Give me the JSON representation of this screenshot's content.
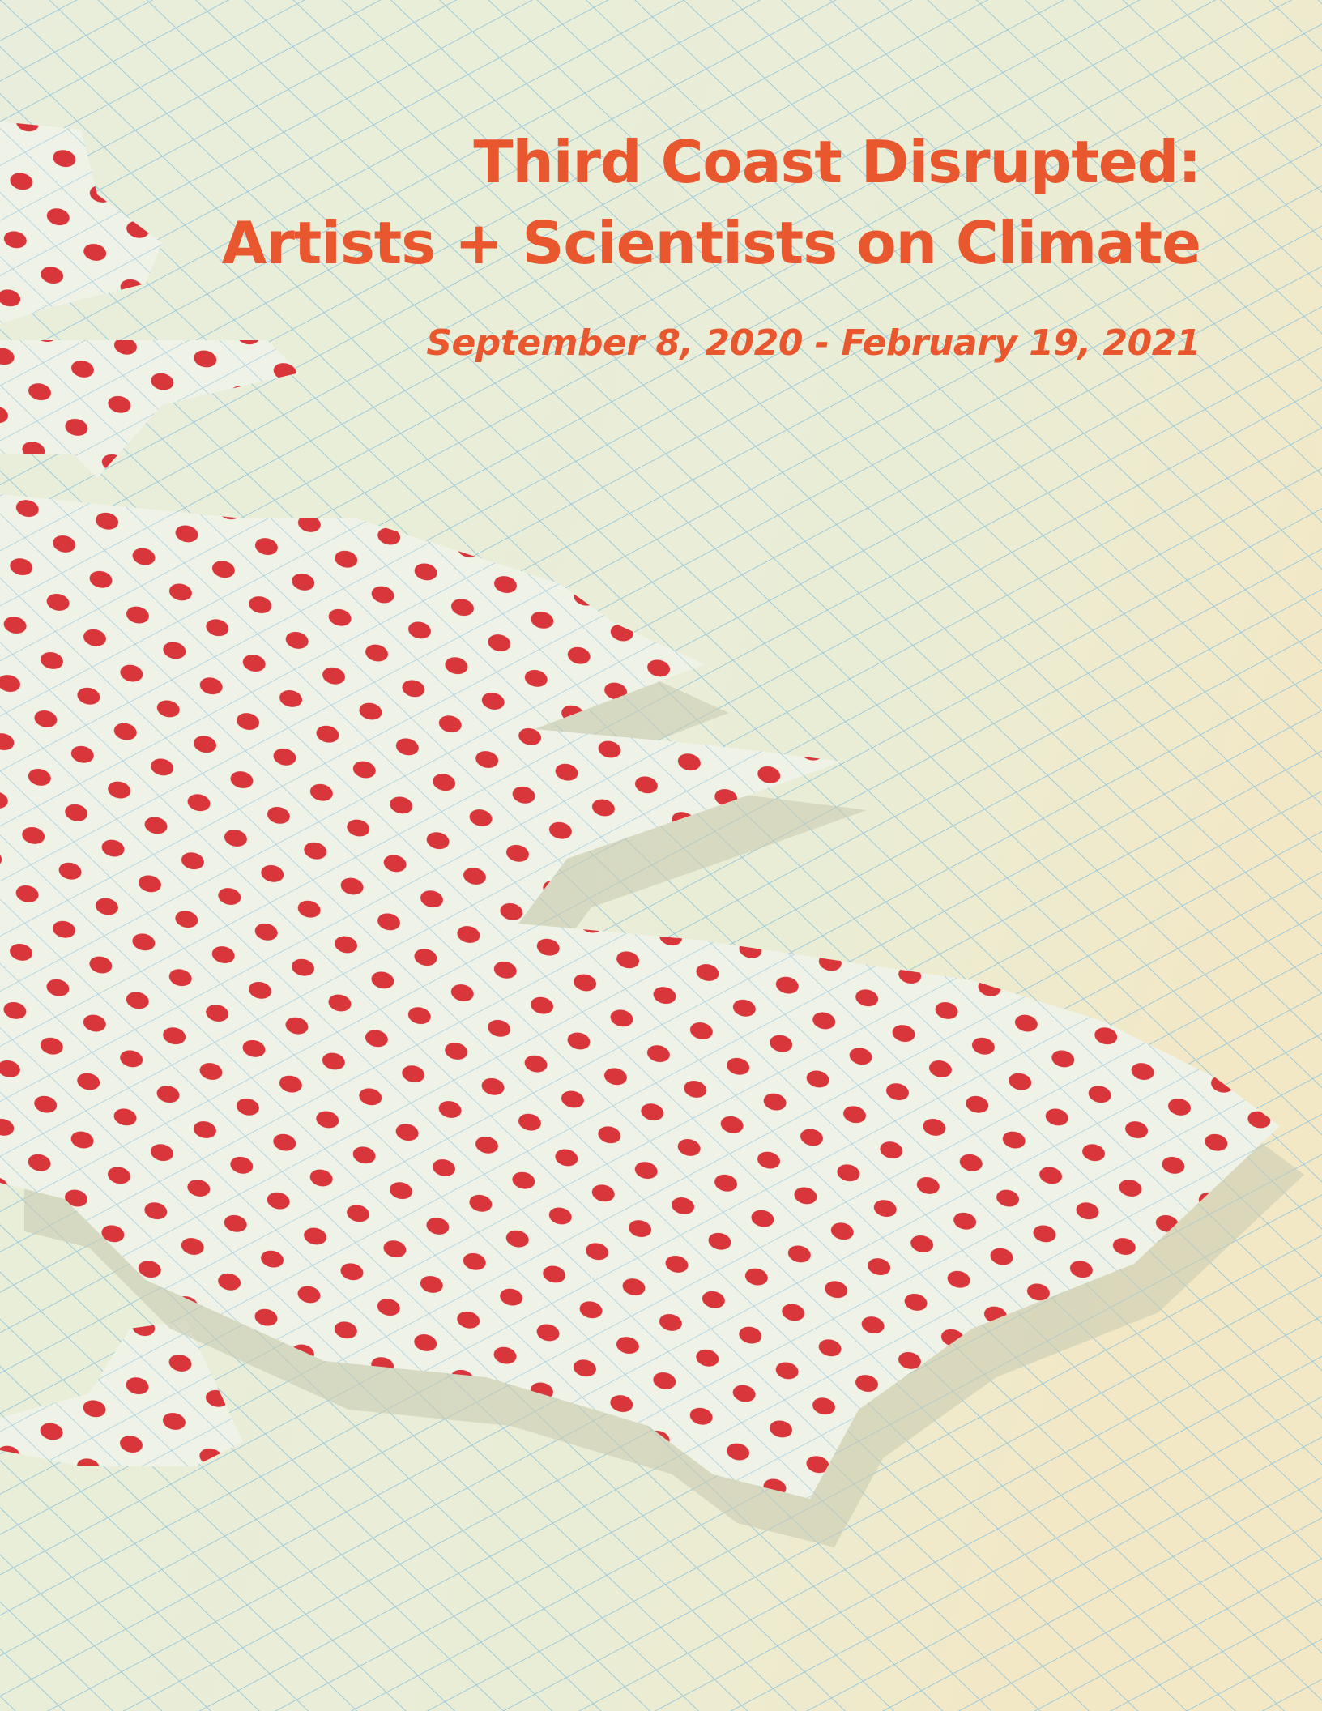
{
  "cover": {
    "title_lines": [
      "Third Coast Disrupted:",
      "Artists + Scientists on Climate"
    ],
    "date": "September 8, 2020 - February 19, 2021"
  }
}
